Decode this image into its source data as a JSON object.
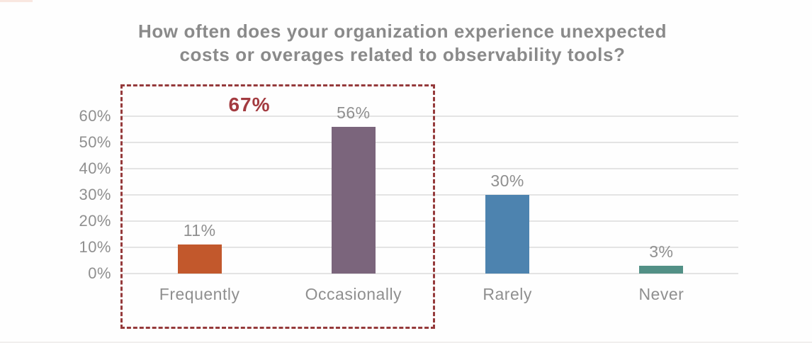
{
  "chart": {
    "title_lines": [
      "How often does your organization experience unexpected",
      "costs or overages related to observability tools?"
    ],
    "annotation_label": "67%"
  },
  "chart_data": {
    "type": "bar",
    "title": "How often does your organization experience unexpected costs or overages related to observability tools?",
    "categories": [
      "Frequently",
      "Occasionally",
      "Rarely",
      "Never"
    ],
    "values": [
      11,
      56,
      30,
      3
    ],
    "value_labels": [
      "11%",
      "56%",
      "30%",
      "3%"
    ],
    "bar_colors": [
      "#c2582c",
      "#7b657c",
      "#4d83af",
      "#529086"
    ],
    "y_ticks": [
      0,
      10,
      20,
      30,
      40,
      50,
      60
    ],
    "y_tick_labels": [
      "0%",
      "10%",
      "20%",
      "30%",
      "40%",
      "50%",
      "60%"
    ],
    "ylim": [
      0,
      60
    ],
    "xlabel": "",
    "ylabel": "",
    "grid": "horizontal",
    "legend": "none",
    "annotation": {
      "text": "67%",
      "color": "#a33b40",
      "highlight_box_categories": [
        "Frequently",
        "Occasionally"
      ],
      "highlight_box_color": "#953a3b",
      "highlight_box_style": "dashed"
    },
    "style": {
      "title_color": "#8a8a8a",
      "label_color": "#8f8f8f",
      "gridline_color": "#e4e4e4",
      "background": "#fefefe"
    }
  }
}
